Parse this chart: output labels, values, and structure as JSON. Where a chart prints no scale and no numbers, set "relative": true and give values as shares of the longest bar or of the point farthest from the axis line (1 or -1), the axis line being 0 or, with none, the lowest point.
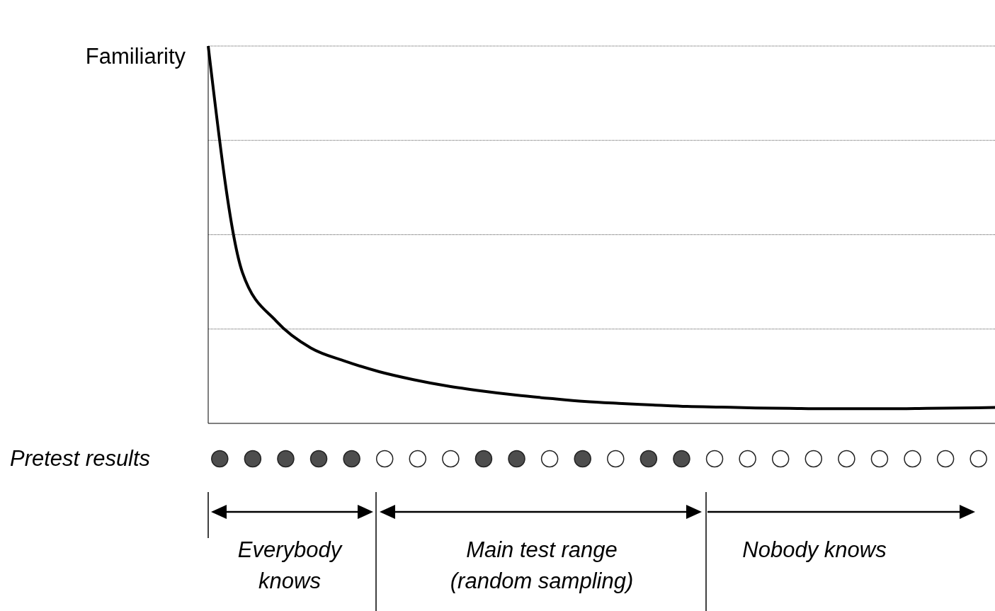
{
  "chart_data": {
    "type": "line",
    "ylabel": "Familiarity",
    "relative": true,
    "grid": "y",
    "marker": "none",
    "categories": [
      null,
      null,
      null,
      null,
      null,
      null,
      null,
      null,
      null,
      null,
      null,
      null,
      null,
      null,
      null,
      null,
      null,
      null,
      null,
      null,
      null,
      null,
      null,
      null
    ],
    "series": [
      {
        "color": "#000000",
        "values": [
          1.0,
          0.4,
          0.27,
          0.2,
          0.165,
          0.137,
          0.116,
          0.099,
          0.086,
          0.075,
          0.066,
          0.058,
          0.053,
          0.049,
          0.045,
          0.043,
          0.041,
          0.04,
          0.039,
          0.039,
          0.039,
          0.04,
          0.041,
          0.042
        ]
      }
    ],
    "annotations": [
      "Pretest results",
      "Everybody knows",
      "Main test range (random sampling)",
      "Nobody knows"
    ]
  }
}
